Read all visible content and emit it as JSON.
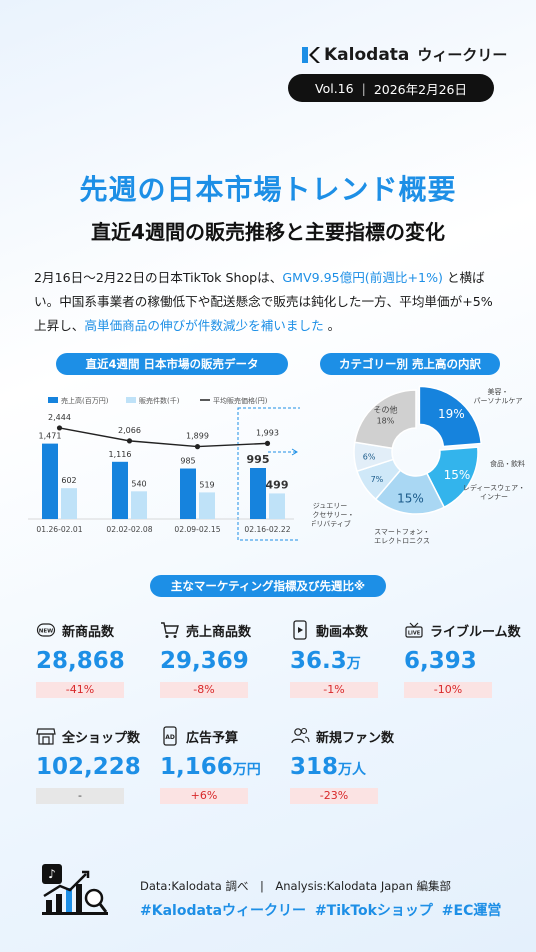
{
  "header": {
    "brand": "Kalodata",
    "series_name": "ウィークリー",
    "vol": "Vol.16",
    "divider": "|",
    "date": "2026年2月26日"
  },
  "title": "先週の日本市場トレンド概要",
  "subtitle": "直近4週間の販売推移と主要指標の変化",
  "summary": {
    "part1": "2月16日～2月22日の日本TikTok Shopは、",
    "hl1": "GMV9.95億円(前週比+1%)",
    "part2": " と横ばい。中国系事業者の稼働低下や配送懸念で販売は鈍化した一方、平均単価が+5%上昇し、",
    "hl2": "高単価商品の伸びが件数減少を補いました",
    "part3": " 。"
  },
  "sections": {
    "sales": "直近4週間 日本市場の販売データ",
    "category": "カテゴリー別 売上高の内訳",
    "marketing": "主なマーケティング指標及び先週比※"
  },
  "chart_data": [
    {
      "type": "bar",
      "title": "直近4週間 日本市場の販売データ",
      "categories": [
        "01.26-02.01",
        "02.02-02.08",
        "02.09-02.15",
        "02.16-02.22"
      ],
      "series": [
        {
          "name": "売上高(百万円)",
          "type": "bar",
          "values": [
            1471,
            1116,
            985,
            995
          ]
        },
        {
          "name": "販売件数(千)",
          "type": "bar",
          "values": [
            602,
            540,
            519,
            499
          ]
        },
        {
          "name": "平均販売価格(円)",
          "type": "line",
          "values": [
            2444,
            2066,
            1899,
            1993
          ]
        }
      ],
      "highlight_category": "02.16-02.22"
    },
    {
      "type": "pie",
      "title": "カテゴリー別 売上高の内訳",
      "slices": [
        {
          "label": "美容・パーソナルケア",
          "value": 19,
          "display": "19%",
          "color": "#1683dd"
        },
        {
          "label": "食品・飲料",
          "value": 15,
          "display": "15%",
          "color": "#33b4ec"
        },
        {
          "label": "レディースウェア・インナー",
          "value": 15,
          "display": "15%",
          "color": "#a9d7f3"
        },
        {
          "label": "スマートフォン・エレクトロニクス",
          "value": 7,
          "display": "7%",
          "color": "#cfe8f8"
        },
        {
          "label": "ジュエリーアクセサリー・デリバティブ",
          "value": 6,
          "display": "6%",
          "color": "#e2eef8"
        },
        {
          "label": "その他",
          "value": 18,
          "display": "18%",
          "color": "#d0d0d0"
        }
      ]
    }
  ],
  "metrics": [
    {
      "label": "新商品数",
      "value": "28,868",
      "unit": "",
      "change": "-41%",
      "kind": "neg",
      "icon": "new-badge-icon"
    },
    {
      "label": "売上商品数",
      "value": "29,369",
      "unit": "",
      "change": "-8%",
      "kind": "neg",
      "icon": "cart-icon"
    },
    {
      "label": "動画本数",
      "value": "36.3",
      "unit": "万",
      "change": "-1%",
      "kind": "neg",
      "icon": "phone-video-icon"
    },
    {
      "label": "ライブルーム数",
      "value": "6,393",
      "unit": "",
      "change": "-10%",
      "kind": "neg",
      "icon": "live-icon"
    },
    {
      "label": "全ショップ数",
      "value": "102,228",
      "unit": "",
      "change": "-",
      "kind": "none",
      "icon": "shop-icon"
    },
    {
      "label": "広告予算",
      "value": "1,166",
      "unit": "万円",
      "change": "+6%",
      "kind": "neg",
      "icon": "ad-icon"
    },
    {
      "label": "新規ファン数",
      "value": "318",
      "unit": "万人",
      "change": "-23%",
      "kind": "neg",
      "icon": "users-icon"
    }
  ],
  "footer": {
    "credit": "Data:Kalodata 調べ　|　Analysis:Kalodata Japan 編集部",
    "tags": "#Kalodataウィークリー #TikTokショップ #EC運営"
  },
  "colors": {
    "accent": "#1d8fe6",
    "light_bar": "#bfe2f8",
    "negative": "#d8282a"
  }
}
